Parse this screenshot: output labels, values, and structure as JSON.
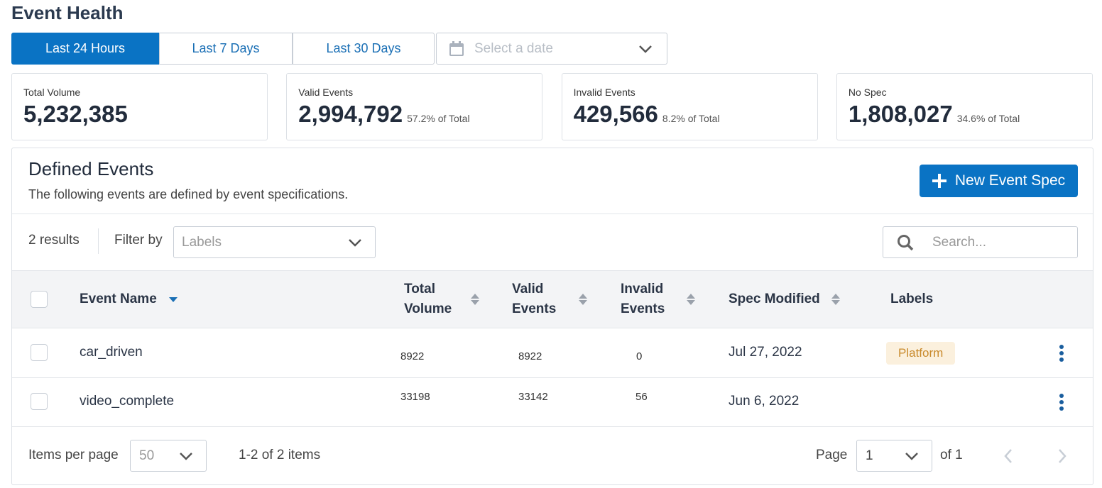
{
  "header": {
    "title": "Event Health"
  },
  "tabs": [
    "Last 24 Hours",
    "Last 7 Days",
    "Last 30 Days"
  ],
  "date_picker": {
    "placeholder": "Select a date"
  },
  "stats": [
    {
      "label": "Total Volume",
      "value": "5,232,385"
    },
    {
      "label": "Valid Events",
      "value": "2,994,792",
      "note": "57.2% of Total"
    },
    {
      "label": "Invalid Events",
      "value": "429,566",
      "note": "8.2% of Total"
    },
    {
      "label": "No Spec",
      "value": "1,808,027",
      "note": "34.6% of Total"
    }
  ],
  "panel": {
    "title": "Defined Events",
    "subtitle": "The following events are defined by event specifications.",
    "button": "New Event Spec"
  },
  "toolbar": {
    "results": "2 results",
    "filter_label": "Filter by",
    "filter_placeholder": "Labels",
    "search_placeholder": "Search..."
  },
  "table": {
    "columns": [
      "Event Name",
      "Total Volume",
      "Valid Events",
      "Invalid Events",
      "Spec Modified",
      "Labels"
    ],
    "rows": [
      {
        "name": "car_driven",
        "total": 8922,
        "valid": 8922,
        "invalid": 0,
        "modified": "Jul 27, 2022",
        "labels": [
          "Platform"
        ]
      },
      {
        "name": "video_complete",
        "total": 33198,
        "valid": 33142,
        "invalid": 56,
        "modified": "Jun 6, 2022",
        "labels": []
      }
    ]
  },
  "footer": {
    "items_per_page_label": "Items per page",
    "items_per_page": "50",
    "range": "1-2 of 2 items",
    "page_label": "Page",
    "page": "1",
    "of": "of 1"
  }
}
